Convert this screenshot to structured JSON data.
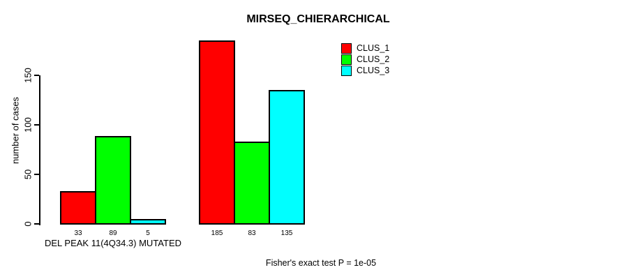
{
  "chart_data": {
    "type": "bar",
    "title": "MIRSEQ_CHIERARCHICAL",
    "ylabel": "number of cases",
    "xlabel": "",
    "categories": [
      "DEL PEAK 11(4Q34.3) MUTATED",
      ""
    ],
    "series": [
      {
        "name": "CLUS_1",
        "color": "#ff0000",
        "values": [
          33,
          185
        ]
      },
      {
        "name": "CLUS_2",
        "color": "#00ff00",
        "values": [
          89,
          83
        ]
      },
      {
        "name": "CLUS_3",
        "color": "#00ffff",
        "values": [
          5,
          135
        ]
      }
    ],
    "bar_value_labels": [
      [
        33,
        89,
        5
      ],
      [
        185,
        83,
        135
      ]
    ],
    "yticks": [
      0,
      50,
      100,
      150
    ],
    "ylim": [
      0,
      150
    ],
    "grid": false,
    "legend_position": "top-right",
    "annotation": "Fisher's exact test P = 1e-05",
    "colors": {
      "axis": "#000000",
      "background": "#ffffff",
      "bar_border": "#000000"
    }
  }
}
